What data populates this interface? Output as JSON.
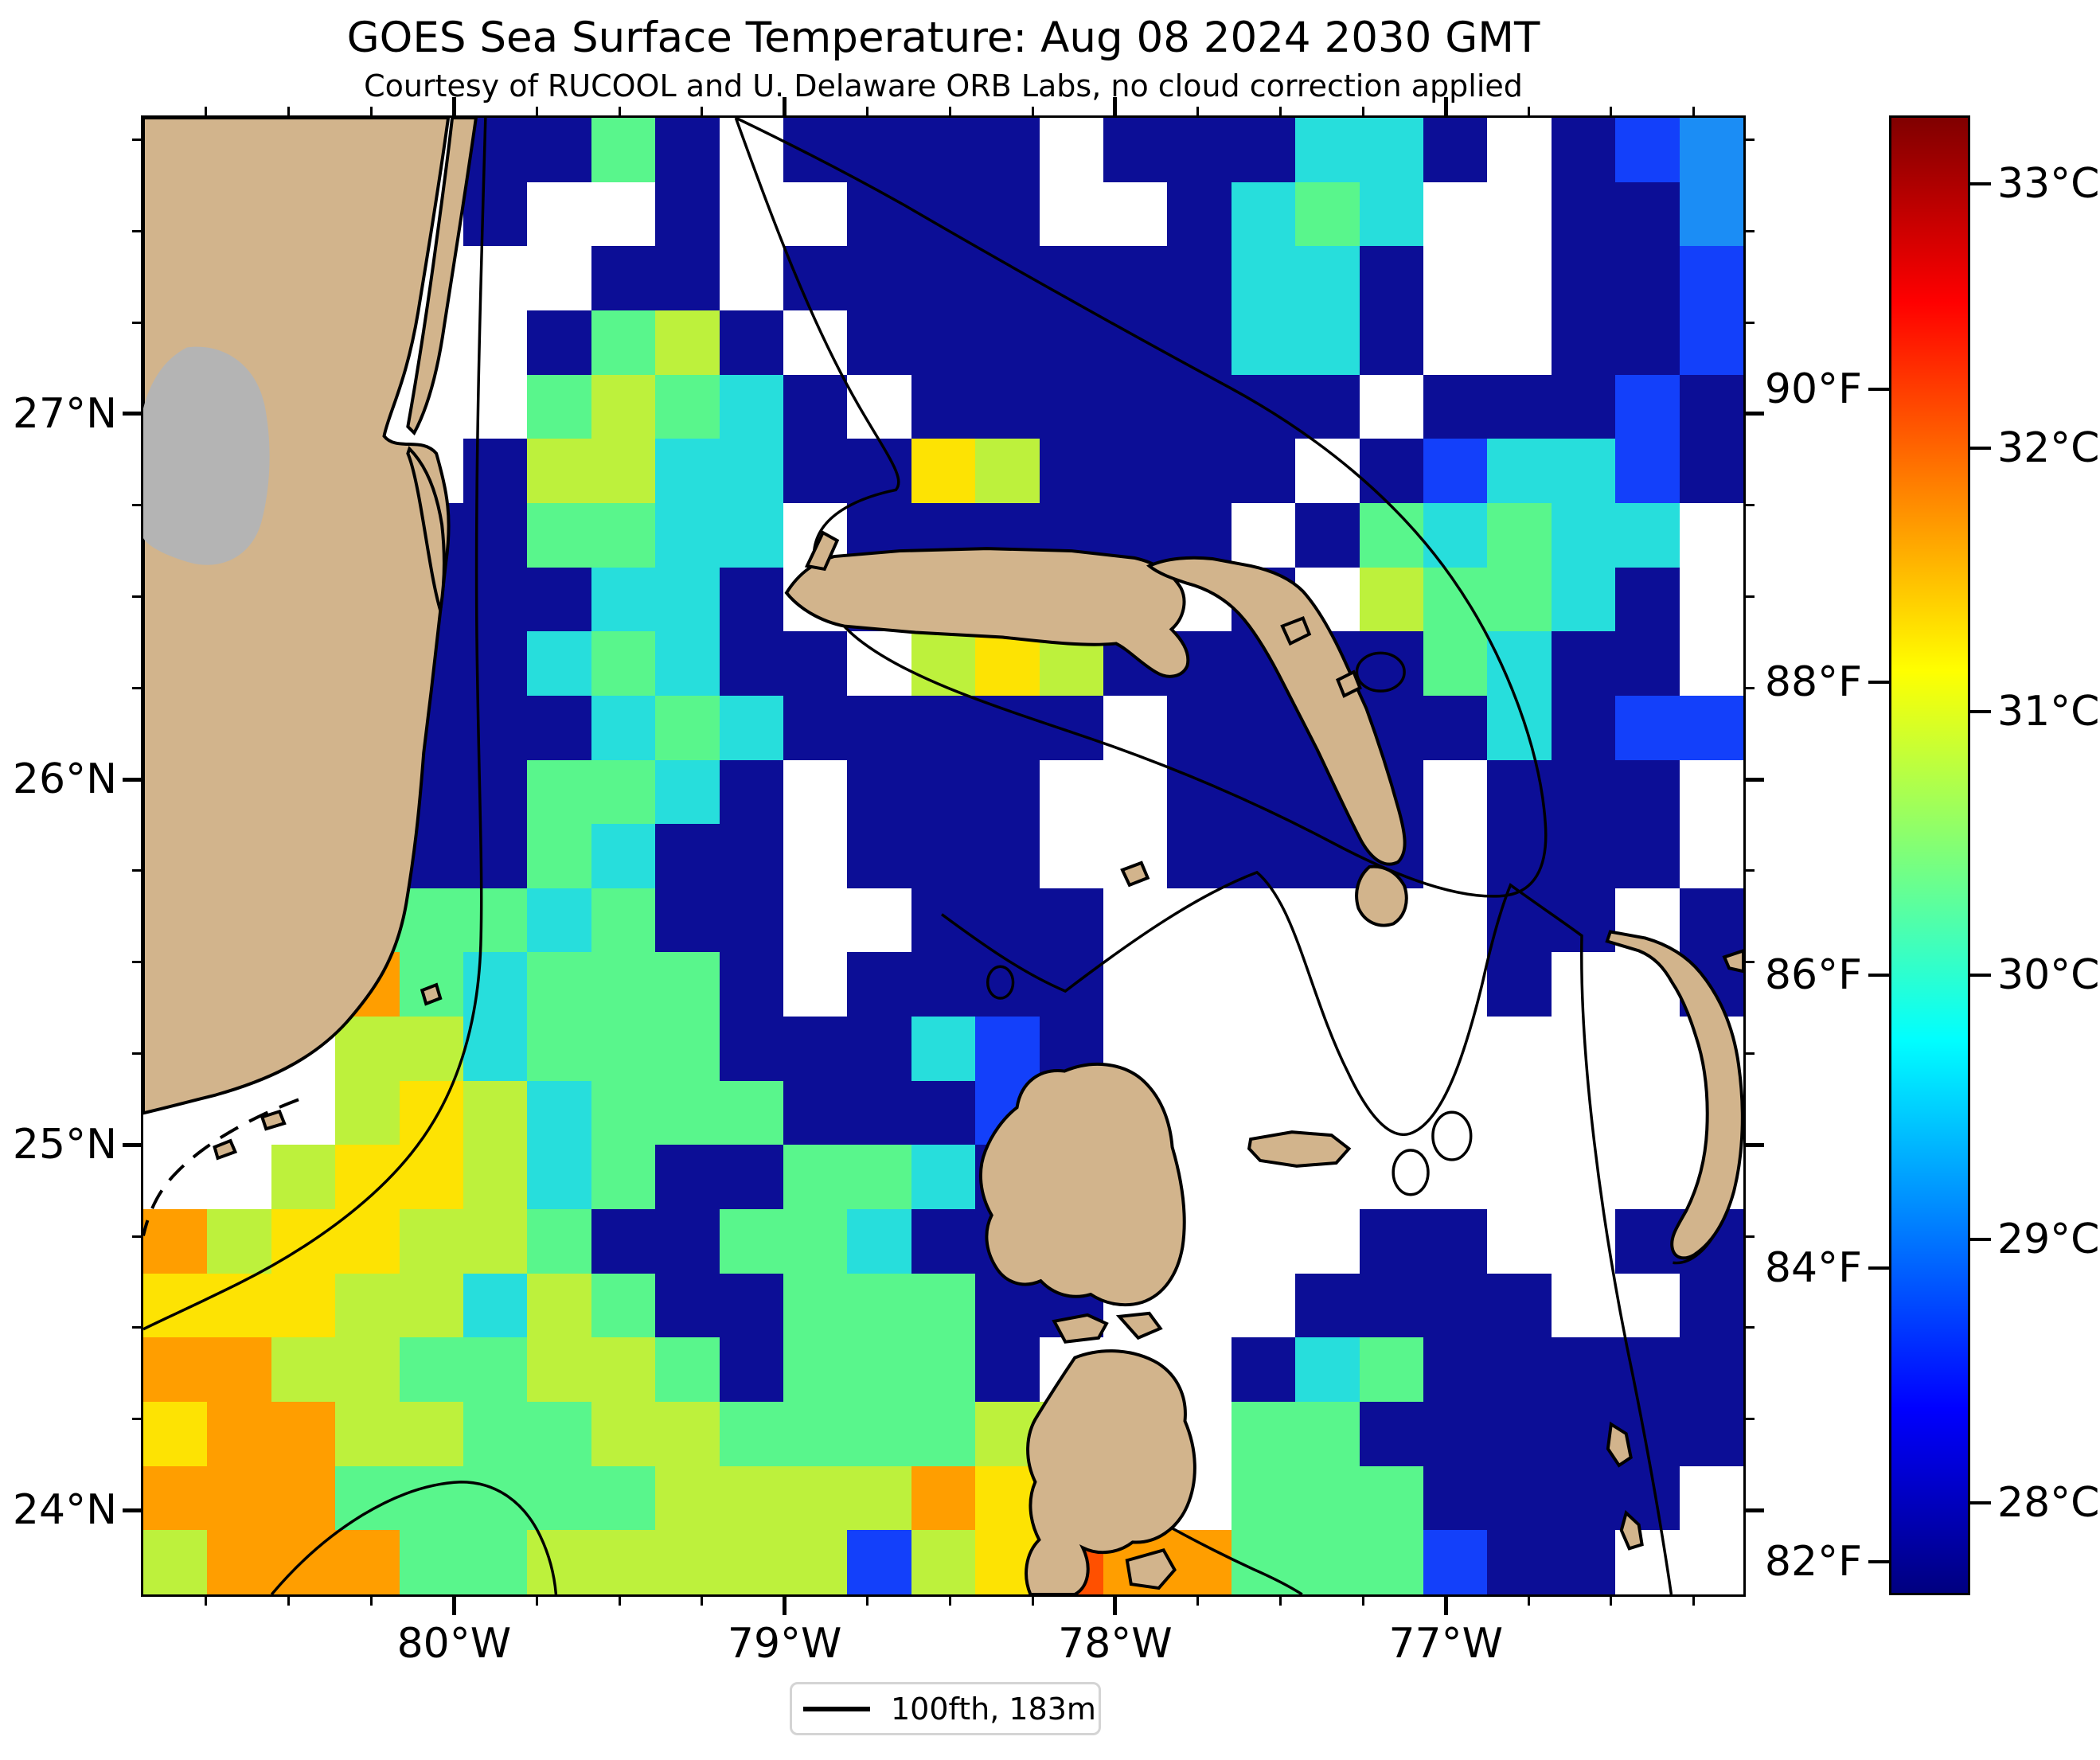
{
  "chart_data": {
    "type": "heatmap",
    "title": "GOES Sea Surface Temperature: Aug 08 2024 2030 GMT",
    "subtitle": "Courtesy of RUCOOL and U. Delaware ORB Labs, no cloud correction applied",
    "xlabel": "",
    "ylabel": "",
    "x_axis": {
      "range": [
        -80.94,
        -76.1
      ],
      "major_ticks": [
        {
          "value": -80,
          "label": "80°W"
        },
        {
          "value": -79,
          "label": "79°W"
        },
        {
          "value": -78,
          "label": "78°W"
        },
        {
          "value": -77,
          "label": "77°W"
        }
      ],
      "minor_tick_step": 0.25
    },
    "y_axis": {
      "range": [
        23.77,
        27.81
      ],
      "major_ticks": [
        {
          "value": 27,
          "label": "27°N"
        },
        {
          "value": 26,
          "label": "26°N"
        },
        {
          "value": 25,
          "label": "25°N"
        },
        {
          "value": 24,
          "label": "24°N"
        }
      ],
      "minor_tick_step": 0.25
    },
    "colorbar": {
      "colormap": "jet",
      "range_c": [
        27.65,
        33.26
      ],
      "ticks_c": [
        {
          "value": 33,
          "label": "33°C"
        },
        {
          "value": 32,
          "label": "32°C"
        },
        {
          "value": 31,
          "label": "31°C"
        },
        {
          "value": 30,
          "label": "30°C"
        },
        {
          "value": 29,
          "label": "29°C"
        },
        {
          "value": 28,
          "label": "28°C"
        }
      ],
      "ticks_f": [
        {
          "value": 90,
          "label": "90°F"
        },
        {
          "value": 88,
          "label": "88°F"
        },
        {
          "value": 86,
          "label": "86°F"
        },
        {
          "value": 84,
          "label": "84°F"
        },
        {
          "value": 82,
          "label": "82°F"
        }
      ]
    },
    "legend": [
      {
        "label": "100fth, 183m",
        "symbol": "black-line"
      }
    ],
    "grid": {
      "comment": "Coarse 25x23 SST field read from the image; '.'=cloud/no-data(white), letters=temperature classes",
      "cols": 25,
      "rows": 23,
      "palette": {
        ".": {
          "color": "#ffffff",
          "temp_c": null
        },
        "n": {
          "color": "#0c0e96",
          "temp_c": 27.8
        },
        "b": {
          "color": "#1340fa",
          "temp_c": 28.6
        },
        "B": {
          "color": "#1b8df5",
          "temp_c": 29.2
        },
        "c": {
          "color": "#27dedc",
          "temp_c": 29.7
        },
        "g": {
          "color": "#59f68c",
          "temp_c": 30.3
        },
        "y": {
          "color": "#bdf13c",
          "temp_c": 30.8
        },
        "Y": {
          "color": "#fde303",
          "temp_c": 31.2
        },
        "o": {
          "color": "#ff9e00",
          "temp_c": 31.7
        },
        "O": {
          "color": "#ff5000",
          "temp_c": 32.2
        },
        "r": {
          "color": "#e81200",
          "temp_c": 32.6
        }
      },
      "codes": [
        ".....nngn.nnnn.nnnccn.nbB",
        ".....n..n..nnn..ncgc..nnB",
        ".......nn.nnnnnnnccn..nnb",
        "......ngyn.nnnnnnccn..nnb",
        "......gygcn.nnnnnnn.nnnbn",
        ".....nyyccnnYynnnn.nbccbn",
        "....nnggcc.nnnnnn.ngcgcc.",
        "....nnnccn.noonn.n.yggcn.",
        "....nncgcnn.yYynnnnngcnn.",
        "....nnncgcnnnnn.nnnnncnbb",
        "....nnggcn.nnn..nnnn.nnn.",
        "....nngcnn.nnn..nnnn.nnn.",
        "...gggcgnn..nnn......nn.n",
        "...ogcgggn.nnnn......n..n",
        "...yycgggnnncbn..........",
        "...yYycgggnnnbn..........",
        "..yYYycgnnggcnn..........",
        "oyYYyygnnggcnnn....nn..nn",
        "YYYyycygnngggnn...nnnn..n",
        "ooyyggyygngggn...ncgnnnnn",
        "Yooyyggyyggggyy..ggnnnnnn",
        "ooogggggyyyyoYYo.gggnnnn.",
        "yoooggyyyyybyYOoogggbnn.."
      ]
    },
    "map_colors": {
      "land": "#d2b48c",
      "lake": "#b4b4b4",
      "cloud": "#ffffff",
      "coastline": "#000000",
      "contour": "#000000"
    }
  }
}
